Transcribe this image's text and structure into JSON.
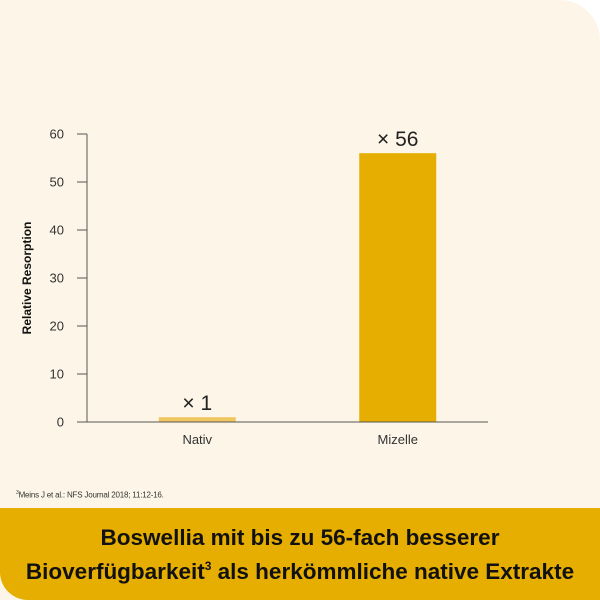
{
  "chart_data": {
    "type": "bar",
    "categories": [
      "Nativ",
      "Mizelle"
    ],
    "values": [
      1,
      56
    ],
    "data_labels": [
      "× 1",
      "× 56"
    ],
    "colors": [
      "#f0c760",
      "#e6ae00"
    ],
    "xlabel": "",
    "ylabel": "Relative Resorption",
    "ylim": [
      0,
      60
    ],
    "yticks": [
      0,
      10,
      20,
      30,
      40,
      50,
      60
    ],
    "grid": false
  },
  "footnote": {
    "marker": "3",
    "text": "Meins J et al.: NFS Journal 2018; 11:12-16."
  },
  "banner": {
    "line1": "Boswellia mit bis zu 56-fach besserer",
    "line2a": "Bioverfügbarkeit",
    "line2sup": "3",
    "line2b": " als herkömmliche native Extrakte"
  }
}
